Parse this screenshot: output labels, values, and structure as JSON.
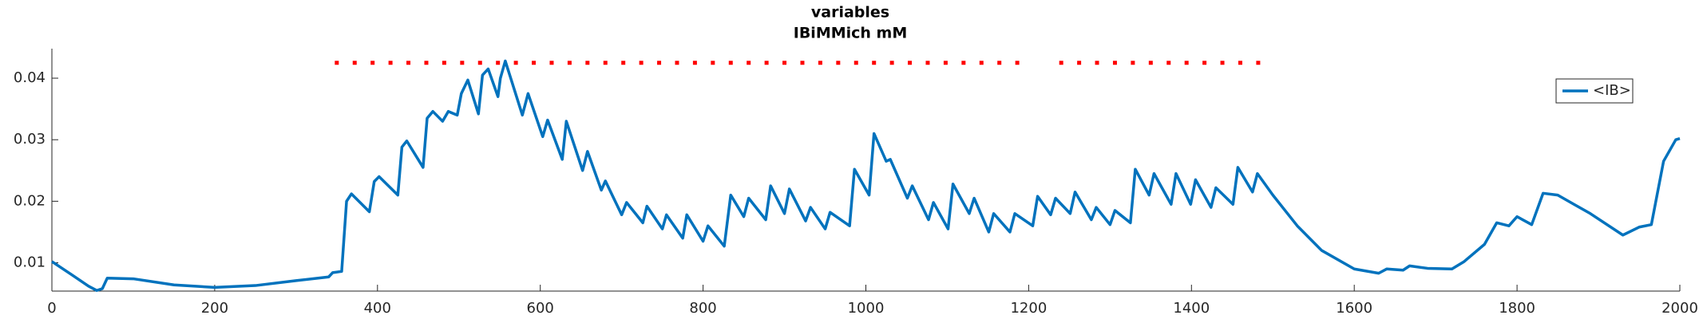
{
  "chart_data": {
    "type": "line",
    "title": "variables",
    "subtitle": "IBiMMich mM",
    "x": [
      0,
      25,
      45,
      55,
      62,
      68,
      100,
      150,
      200,
      250,
      300,
      340,
      345,
      356,
      362,
      368,
      390,
      396,
      402,
      425,
      430,
      436,
      456,
      461,
      468,
      480,
      487,
      498,
      503,
      511,
      524,
      529,
      536,
      548,
      551,
      557,
      578,
      585,
      603,
      609,
      627,
      632,
      652,
      658,
      675,
      680,
      700,
      706,
      726,
      731,
      750,
      755,
      775,
      780,
      800,
      806,
      826,
      834,
      850,
      856,
      877,
      883,
      900,
      906,
      926,
      932,
      950,
      956,
      980,
      986,
      1004,
      1010,
      1025,
      1030,
      1051,
      1057,
      1077,
      1083,
      1101,
      1107,
      1127,
      1133,
      1151,
      1157,
      1177,
      1183,
      1205,
      1211,
      1227,
      1233,
      1251,
      1257,
      1277,
      1283,
      1300,
      1306,
      1325,
      1331,
      1348,
      1354,
      1375,
      1381,
      1399,
      1405,
      1424,
      1430,
      1451,
      1457,
      1475,
      1481,
      1500,
      1530,
      1560,
      1600,
      1630,
      1640,
      1660,
      1668,
      1690,
      1720,
      1735,
      1760,
      1775,
      1790,
      1800,
      1818,
      1832,
      1850,
      1870,
      1890,
      1930,
      1950,
      1965,
      1980,
      1995,
      2000
    ],
    "series": [
      {
        "name": "<IB>",
        "color": "#0072bd",
        "values": [
          0.0102,
          0.008,
          0.0062,
          0.0055,
          0.0058,
          0.0075,
          0.0074,
          0.0064,
          0.006,
          0.0063,
          0.0071,
          0.0077,
          0.0084,
          0.0086,
          0.02,
          0.0212,
          0.0183,
          0.0232,
          0.024,
          0.021,
          0.0288,
          0.0298,
          0.0255,
          0.0335,
          0.0346,
          0.033,
          0.0346,
          0.034,
          0.0375,
          0.0397,
          0.0342,
          0.0405,
          0.0415,
          0.037,
          0.04,
          0.0428,
          0.034,
          0.0375,
          0.0305,
          0.0332,
          0.0268,
          0.033,
          0.025,
          0.0281,
          0.0218,
          0.0233,
          0.0178,
          0.0198,
          0.0165,
          0.0192,
          0.0155,
          0.0178,
          0.014,
          0.0178,
          0.0135,
          0.016,
          0.0127,
          0.021,
          0.0175,
          0.0205,
          0.017,
          0.0225,
          0.018,
          0.022,
          0.0168,
          0.019,
          0.0155,
          0.0182,
          0.016,
          0.0252,
          0.021,
          0.031,
          0.0265,
          0.0268,
          0.0205,
          0.0225,
          0.017,
          0.0198,
          0.0155,
          0.0228,
          0.018,
          0.0205,
          0.015,
          0.018,
          0.015,
          0.018,
          0.016,
          0.0208,
          0.0178,
          0.0205,
          0.018,
          0.0215,
          0.017,
          0.019,
          0.0162,
          0.0185,
          0.0165,
          0.0252,
          0.021,
          0.0245,
          0.0195,
          0.0245,
          0.0195,
          0.0235,
          0.019,
          0.0222,
          0.0195,
          0.0255,
          0.0215,
          0.0245,
          0.021,
          0.016,
          0.012,
          0.009,
          0.0083,
          0.009,
          0.0088,
          0.0095,
          0.0091,
          0.009,
          0.0102,
          0.013,
          0.0165,
          0.016,
          0.0175,
          0.0162,
          0.0213,
          0.021,
          0.0195,
          0.018,
          0.0145,
          0.0158,
          0.0162,
          0.0265,
          0.03,
          0.0302
        ]
      }
    ],
    "markers": {
      "color": "#ff0000",
      "y": 0.0425,
      "x": [
        350,
        372,
        394,
        416,
        438,
        460,
        482,
        504,
        526,
        548,
        570,
        592,
        614,
        636,
        658,
        680,
        702,
        724,
        746,
        768,
        790,
        812,
        834,
        856,
        878,
        900,
        922,
        944,
        966,
        988,
        1010,
        1032,
        1054,
        1076,
        1098,
        1120,
        1142,
        1164,
        1186,
        1240,
        1262,
        1284,
        1306,
        1328,
        1350,
        1372,
        1394,
        1416,
        1438,
        1460,
        1482
      ]
    },
    "xlim": [
      0,
      2000
    ],
    "xticks": [
      0,
      200,
      400,
      600,
      800,
      1000,
      1200,
      1400,
      1600,
      1800,
      2000
    ],
    "ylim": [
      0.0054,
      0.0448
    ],
    "yticks": [
      0.01,
      0.02,
      0.03,
      0.04
    ],
    "legend": "upper right"
  }
}
